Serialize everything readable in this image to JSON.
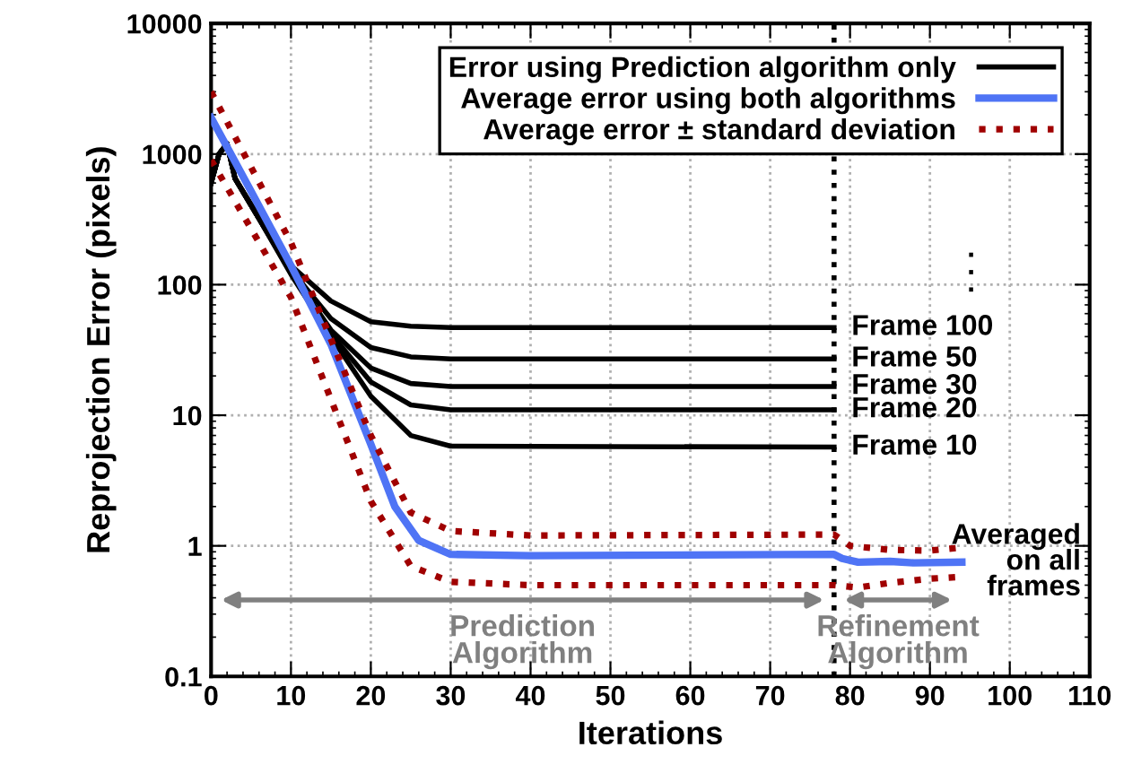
{
  "chart_data": {
    "type": "line",
    "xlabel": "Iterations",
    "ylabel": "Reprojection Error (pixels)",
    "log": "y",
    "xlim": [
      0,
      110
    ],
    "xticks": [
      0,
      10,
      20,
      30,
      40,
      50,
      60,
      70,
      80,
      90,
      100,
      110
    ],
    "ylim": [
      0.1,
      10000
    ],
    "yticks": [
      0.1,
      1,
      10,
      100,
      1000,
      10000
    ],
    "grid": true,
    "legend": "top right",
    "line_style": "solid",
    "marker": "none",
    "series": [
      {
        "name": "Error using Prediction algorithm only",
        "color": "#000000",
        "x": [
          0,
          1,
          2,
          3,
          6,
          10,
          15,
          20,
          25,
          30,
          78
        ],
        "values": [
          600,
          1000,
          1200,
          650,
          330,
          140,
          75,
          52,
          48,
          47,
          47
        ]
      },
      {
        "color": "#000000",
        "x": [
          0,
          1,
          2,
          3,
          6,
          10,
          15,
          20,
          25,
          30,
          78
        ],
        "values": [
          600,
          1000,
          1200,
          650,
          320,
          130,
          55,
          33,
          28,
          27,
          27
        ]
      },
      {
        "color": "#000000",
        "x": [
          0,
          1,
          2,
          3,
          6,
          10,
          15,
          20,
          25,
          30,
          78
        ],
        "values": [
          600,
          1000,
          1200,
          650,
          320,
          125,
          45,
          23,
          17.5,
          16.6,
          16.6
        ]
      },
      {
        "color": "#000000",
        "x": [
          0,
          1,
          2,
          3,
          6,
          10,
          15,
          20,
          25,
          30,
          78
        ],
        "values": [
          600,
          1000,
          1200,
          650,
          320,
          125,
          42,
          18,
          12,
          11,
          11
        ]
      },
      {
        "color": "#000000",
        "x": [
          0,
          1,
          2,
          3,
          6,
          10,
          15,
          20,
          25,
          30,
          78
        ],
        "values": [
          600,
          1000,
          1200,
          650,
          320,
          120,
          40,
          14,
          7,
          5.8,
          5.7
        ]
      },
      {
        "name": "Average error using both algorithms",
        "color": "#4f74f5",
        "x": [
          0,
          5,
          10,
          15,
          20,
          23,
          26,
          30,
          40,
          78,
          79,
          81,
          85,
          88,
          94
        ],
        "values": [
          1900,
          520,
          140,
          35,
          6,
          2,
          1.1,
          0.86,
          0.84,
          0.86,
          0.8,
          0.75,
          0.76,
          0.74,
          0.75
        ]
      },
      {
        "name": "Average error ± standard deviation",
        "color": "#a00000",
        "line_style": "dotted",
        "x": [
          0,
          10,
          20,
          25,
          30,
          40,
          78,
          80,
          85,
          90,
          94
        ],
        "values": [
          3000,
          210,
          7,
          1.8,
          1.3,
          1.2,
          1.22,
          1.0,
          0.93,
          0.92,
          0.97
        ]
      },
      {
        "color": "#a00000",
        "line_style": "dotted",
        "x": [
          0,
          10,
          20,
          25,
          30,
          40,
          78,
          81,
          85,
          90,
          94
        ],
        "values": [
          900,
          80,
          2.2,
          0.7,
          0.53,
          0.5,
          0.5,
          0.48,
          0.52,
          0.56,
          0.58
        ]
      }
    ],
    "ref_lines": [
      {
        "axis": "x",
        "value": 78,
        "color": "#000000",
        "line_style": "dotted"
      }
    ],
    "annotations": [
      "Frame 100",
      "Frame 50",
      "Frame 30",
      "Frame 20",
      "Frame 10",
      ".\n.\n.",
      "Averaged\non all\nframes",
      "Prediction\nAlgorithm",
      "Refinement\nAlgorithm"
    ]
  }
}
